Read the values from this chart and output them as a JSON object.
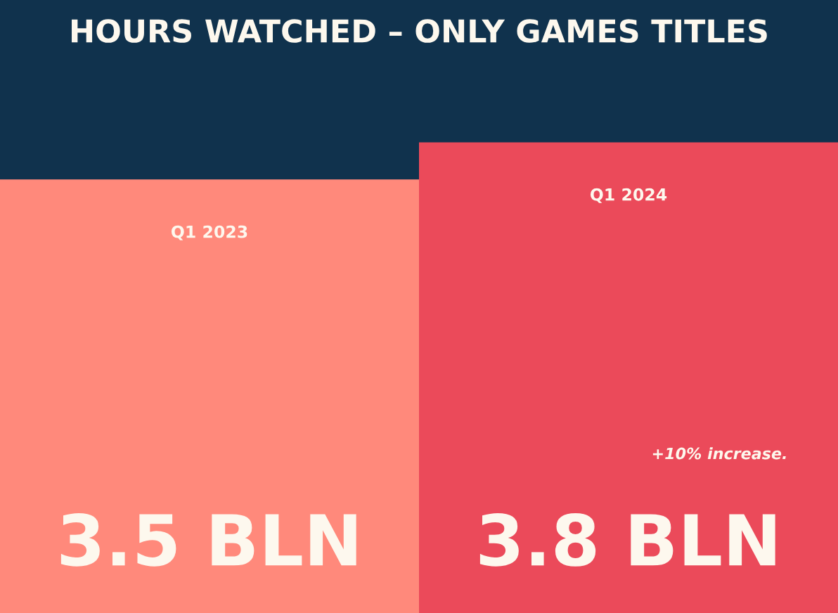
{
  "chart_data": {
    "type": "bar",
    "title": "HOURS WATCHED – ONLY GAMES TITLES",
    "categories": [
      "Q1 2023",
      "Q1 2024"
    ],
    "values": [
      3.5,
      3.8
    ],
    "colors": [
      "#ff897b",
      "#eb4a5a"
    ],
    "value_labels": [
      "3.5 BLN",
      "3.8 BLN"
    ],
    "annotations": [
      "+10% increase."
    ]
  }
}
